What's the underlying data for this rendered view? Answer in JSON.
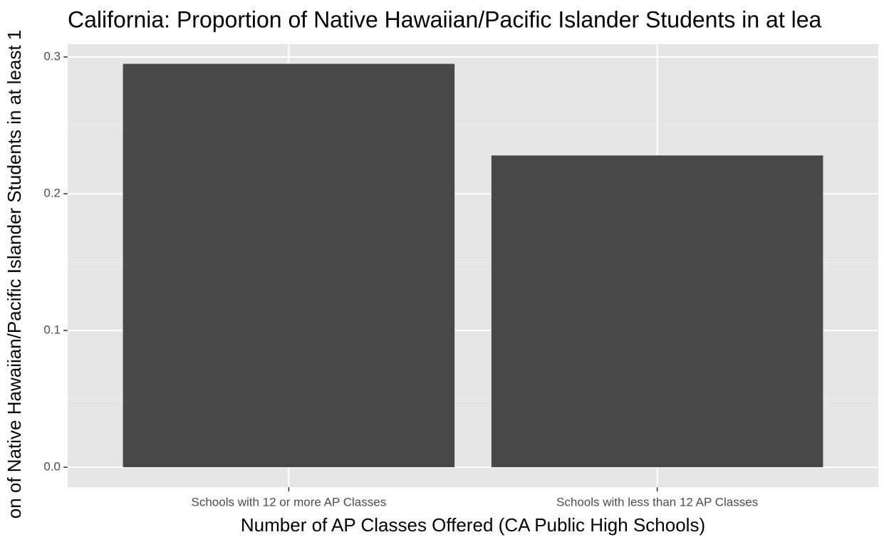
{
  "chart_data": {
    "type": "bar",
    "title": "California: Proportion of Native Hawaiian/Pacific Islander Students in at lea",
    "x_label": "Number of AP Classes Offered (CA Public High Schools)",
    "y_label": "on of Native Hawaiian/Pacific Islander Students in at least 1",
    "categories": [
      "Schools with 12 or more AP Classes",
      "Schools with less than 12 AP Classes"
    ],
    "values": [
      0.295,
      0.228
    ],
    "color": "#484848",
    "ylim": [
      -0.0146,
      0.3094
    ],
    "yticks": [
      {
        "value": 0,
        "label": "0.0"
      },
      0.1,
      0.2,
      0.3
    ],
    "grid": true,
    "minor_grid": true
  }
}
